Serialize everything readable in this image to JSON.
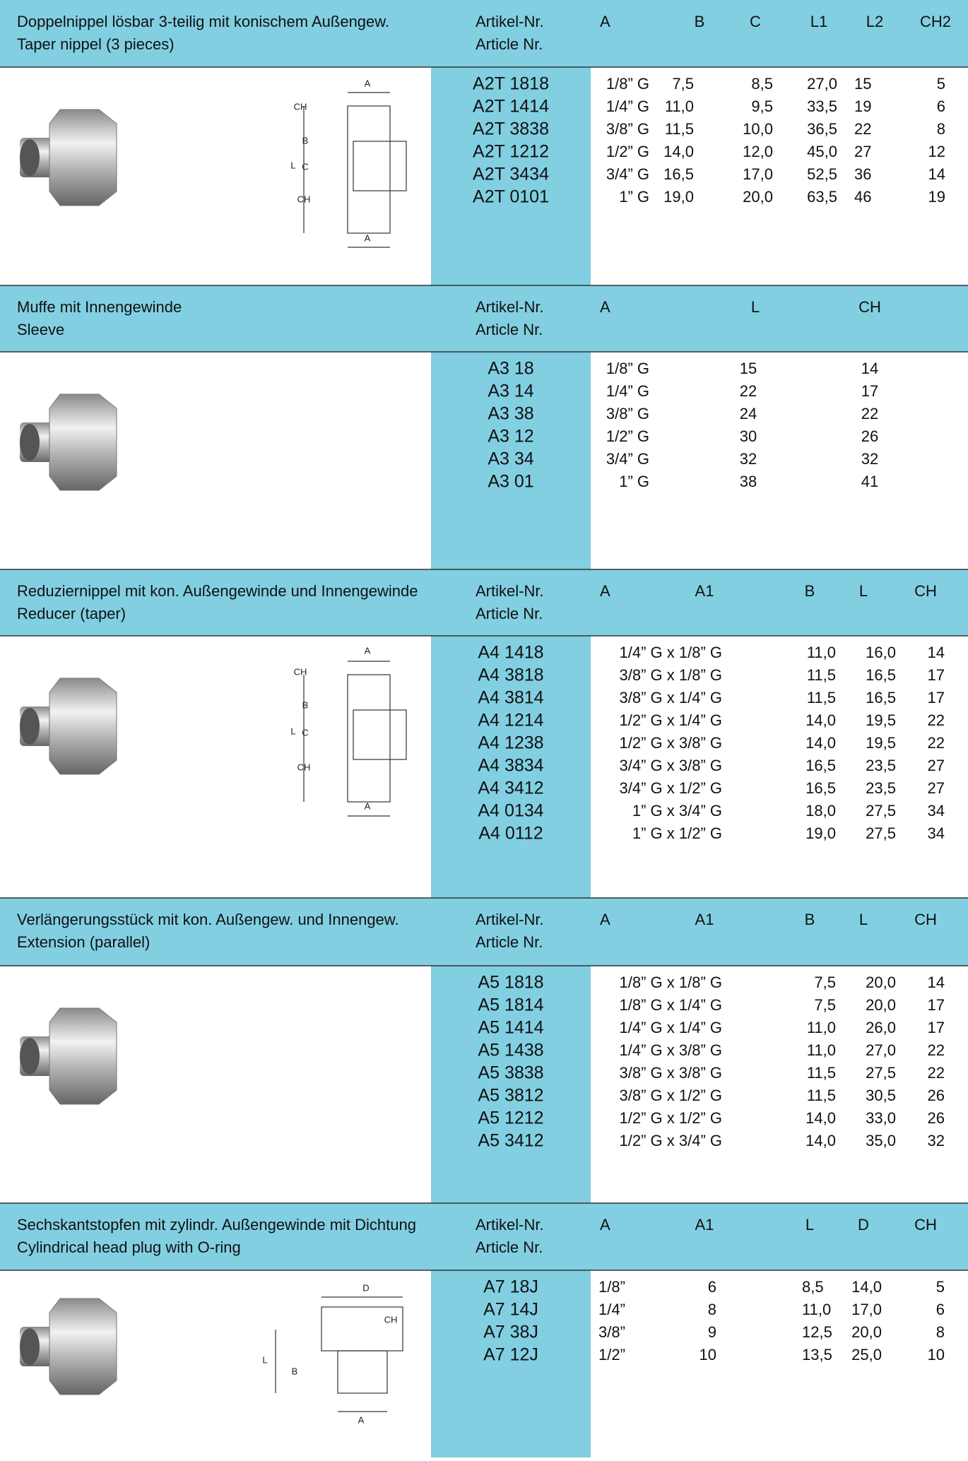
{
  "sections": [
    {
      "title_de": "Doppelnippel lösbar 3-teilig mit konischem Außengew.",
      "title_en": "Taper nippel (3 pieces)",
      "article_header": [
        "Artikel-Nr.",
        "Article Nr."
      ],
      "columns": [
        "A",
        "B",
        "C",
        "L1",
        "L2",
        "CH2"
      ],
      "drawing_labels": [
        "A",
        "CH",
        "B",
        "C",
        "L",
        "CH",
        "A"
      ],
      "rows": [
        {
          "article": "A2T 1818",
          "cells": [
            "1/8” G",
            "7,5",
            "8,5",
            "27,0",
            "15",
            "5"
          ]
        },
        {
          "article": "A2T 1414",
          "cells": [
            "1/4” G",
            "11,0",
            "9,5",
            "33,5",
            "19",
            "6"
          ]
        },
        {
          "article": "A2T 3838",
          "cells": [
            "3/8” G",
            "11,5",
            "10,0",
            "36,5",
            "22",
            "8"
          ]
        },
        {
          "article": "A2T 1212",
          "cells": [
            "1/2” G",
            "14,0",
            "12,0",
            "45,0",
            "27",
            "12"
          ]
        },
        {
          "article": "A2T 3434",
          "cells": [
            "3/4” G",
            "16,5",
            "17,0",
            "52,5",
            "36",
            "14"
          ]
        },
        {
          "article": "A2T 0101",
          "cells": [
            "1” G",
            "19,0",
            "20,0",
            "63,5",
            "46",
            "19"
          ]
        }
      ]
    },
    {
      "title_de": "Muffe mit Innengewinde",
      "title_en": "Sleeve",
      "article_header": [
        "Artikel-Nr.",
        "Article Nr."
      ],
      "columns": [
        "A",
        "L",
        "CH"
      ],
      "rows": [
        {
          "article": "A3 18",
          "cells": [
            "1/8” G",
            "15",
            "14"
          ]
        },
        {
          "article": "A3 14",
          "cells": [
            "1/4” G",
            "22",
            "17"
          ]
        },
        {
          "article": "A3 38",
          "cells": [
            "3/8” G",
            "24",
            "22"
          ]
        },
        {
          "article": "A3 12",
          "cells": [
            "1/2” G",
            "30",
            "26"
          ]
        },
        {
          "article": "A3 34",
          "cells": [
            "3/4” G",
            "32",
            "32"
          ]
        },
        {
          "article": "A3 01",
          "cells": [
            "1” G",
            "38",
            "41"
          ]
        }
      ]
    },
    {
      "title_de": "Reduziernippel mit kon. Außengewinde und Innengewinde",
      "title_en": "Reducer (taper)",
      "article_header": [
        "Artikel-Nr.",
        "Article Nr."
      ],
      "columns": [
        "A",
        "A1",
        "B",
        "L",
        "CH"
      ],
      "drawing_labels": [
        "A",
        "CH",
        "B",
        "C",
        "L",
        "CH",
        "A"
      ],
      "rows": [
        {
          "article": "A4 1418",
          "cells": [
            "1/4” G x 1/8” G",
            "11,0",
            "16,0",
            "14"
          ]
        },
        {
          "article": "A4 3818",
          "cells": [
            "3/8” G x 1/8” G",
            "11,5",
            "16,5",
            "17"
          ]
        },
        {
          "article": "A4 3814",
          "cells": [
            "3/8” G x 1/4” G",
            "11,5",
            "16,5",
            "17"
          ]
        },
        {
          "article": "A4 1214",
          "cells": [
            "1/2” G x 1/4” G",
            "14,0",
            "19,5",
            "22"
          ]
        },
        {
          "article": "A4 1238",
          "cells": [
            "1/2” G x 3/8” G",
            "14,0",
            "19,5",
            "22"
          ]
        },
        {
          "article": "A4 3834",
          "cells": [
            "3/4” G x 3/8” G",
            "16,5",
            "23,5",
            "27"
          ]
        },
        {
          "article": "A4 3412",
          "cells": [
            "3/4” G x 1/2” G",
            "16,5",
            "23,5",
            "27"
          ]
        },
        {
          "article": "A4 0134",
          "cells": [
            "1” G x 3/4” G",
            "18,0",
            "27,5",
            "34"
          ]
        },
        {
          "article": "A4 0112",
          "cells": [
            "1” G x 1/2” G",
            "19,0",
            "27,5",
            "34"
          ]
        }
      ]
    },
    {
      "title_de": "Verlängerungsstück mit kon. Außengew. und Innengew.",
      "title_en": "Extension (parallel)",
      "article_header": [
        "Artikel-Nr.",
        "Article Nr."
      ],
      "columns": [
        "A",
        "A1",
        "B",
        "L",
        "CH"
      ],
      "rows": [
        {
          "article": "A5 1818",
          "cells": [
            "1/8” G x 1/8” G",
            "7,5",
            "20,0",
            "14"
          ]
        },
        {
          "article": "A5 1814",
          "cells": [
            "1/8” G x 1/4” G",
            "7,5",
            "20,0",
            "17"
          ]
        },
        {
          "article": "A5 1414",
          "cells": [
            "1/4” G x 1/4” G",
            "11,0",
            "26,0",
            "17"
          ]
        },
        {
          "article": "A5 1438",
          "cells": [
            "1/4” G x 3/8” G",
            "11,0",
            "27,0",
            "22"
          ]
        },
        {
          "article": "A5 3838",
          "cells": [
            "3/8” G x 3/8” G",
            "11,5",
            "27,5",
            "22"
          ]
        },
        {
          "article": "A5 3812",
          "cells": [
            "3/8” G x 1/2” G",
            "11,5",
            "30,5",
            "26"
          ]
        },
        {
          "article": "A5 1212",
          "cells": [
            "1/2” G x 1/2” G",
            "14,0",
            "33,0",
            "26"
          ]
        },
        {
          "article": "A5 3412",
          "cells": [
            "1/2” G x 3/4” G",
            "14,0",
            "35,0",
            "32"
          ]
        }
      ]
    },
    {
      "title_de": "Sechskantstopfen mit zylindr. Außengewinde mit Dichtung",
      "title_en": "Cylindrical head plug with O-ring",
      "article_header": [
        "Artikel-Nr.",
        "Article Nr."
      ],
      "columns": [
        "A",
        "A1",
        "L",
        "D",
        "CH"
      ],
      "drawing_labels": [
        "D",
        "CH",
        "L",
        "B",
        "A"
      ],
      "rows": [
        {
          "article": "A7 18J",
          "cells": [
            "1/8”",
            "6",
            "8,5",
            "14,0",
            "5"
          ]
        },
        {
          "article": "A7 14J",
          "cells": [
            "1/4”",
            "8",
            "11,0",
            "17,0",
            "6"
          ]
        },
        {
          "article": "A7 38J",
          "cells": [
            "3/8”",
            "9",
            "12,5",
            "20,0",
            "8"
          ]
        },
        {
          "article": "A7 12J",
          "cells": [
            "1/2”",
            "10",
            "13,5",
            "25,0",
            "10"
          ]
        }
      ]
    }
  ]
}
